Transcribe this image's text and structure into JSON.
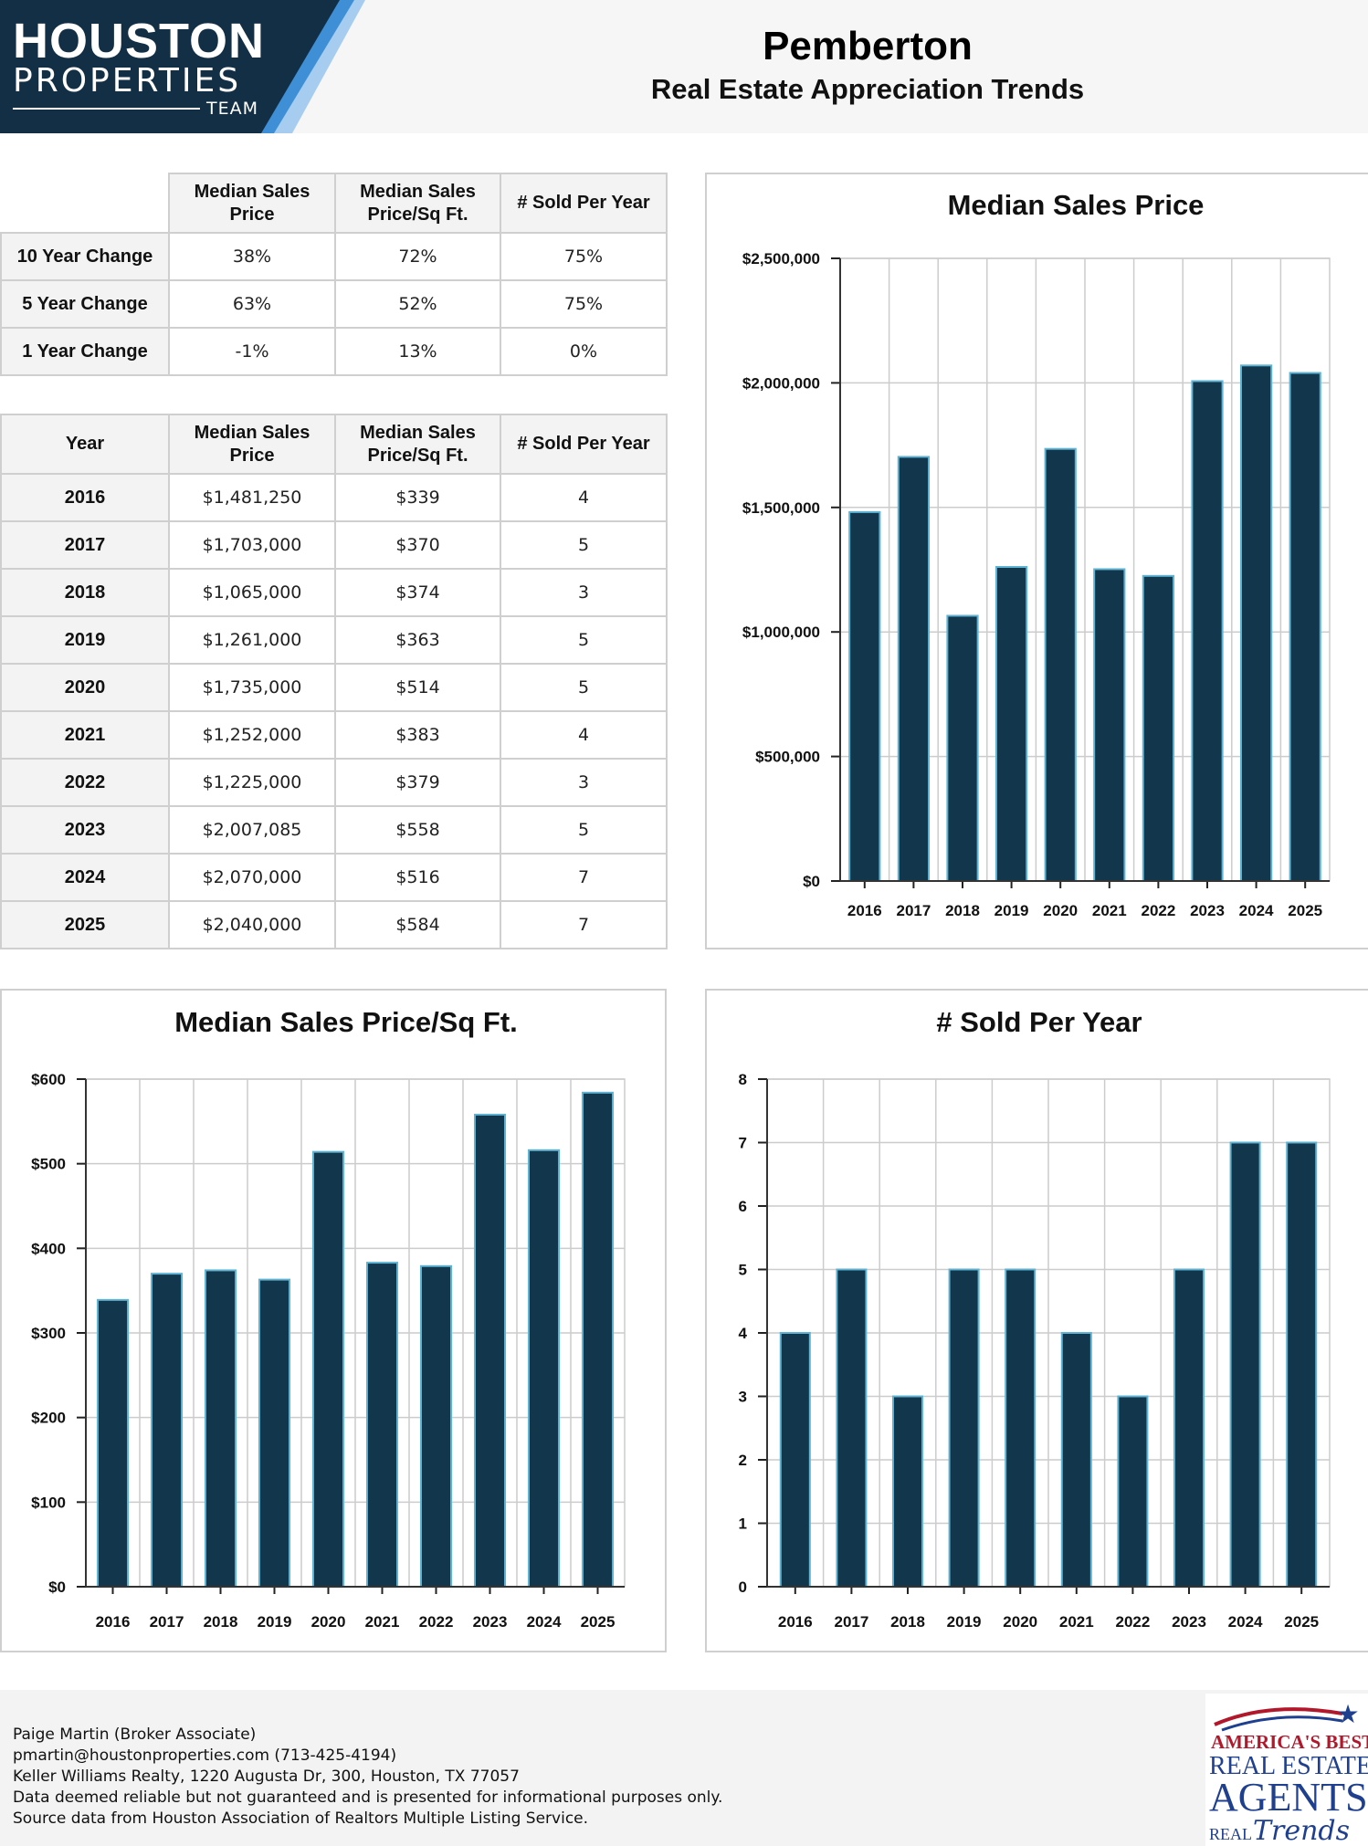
{
  "header": {
    "logo": {
      "line1": "HOUSTON",
      "line2": "PROPERTIES",
      "line3": "TEAM"
    },
    "title": "Pemberton",
    "subtitle": "Real Estate Appreciation Trends"
  },
  "colors": {
    "bar": "#12364c",
    "bar_edge": "#5fb3d3",
    "logo_dark": "#132f45",
    "logo_blue": "#3f8fd6",
    "logo_light": "#a6cdf0",
    "grid": "#cccccc"
  },
  "change_table": {
    "headers": [
      "Median Sales Price",
      "Median Sales Price/Sq Ft.",
      "# Sold Per Year"
    ],
    "rows": [
      {
        "label": "10 Year Change",
        "price": "38%",
        "sqft": "72%",
        "sold": "75%"
      },
      {
        "label": "5 Year Change",
        "price": "63%",
        "sqft": "52%",
        "sold": "75%"
      },
      {
        "label": "1 Year Change",
        "price": "-1%",
        "sqft": "13%",
        "sold": "0%"
      }
    ]
  },
  "year_table": {
    "headers": [
      "Year",
      "Median Sales Price",
      "Median Sales Price/Sq Ft.",
      "# Sold Per Year"
    ],
    "rows": [
      {
        "year": "2016",
        "price": "$1,481,250",
        "sqft": "$339",
        "sold": "4"
      },
      {
        "year": "2017",
        "price": "$1,703,000",
        "sqft": "$370",
        "sold": "5"
      },
      {
        "year": "2018",
        "price": "$1,065,000",
        "sqft": "$374",
        "sold": "3"
      },
      {
        "year": "2019",
        "price": "$1,261,000",
        "sqft": "$363",
        "sold": "5"
      },
      {
        "year": "2020",
        "price": "$1,735,000",
        "sqft": "$514",
        "sold": "5"
      },
      {
        "year": "2021",
        "price": "$1,252,000",
        "sqft": "$383",
        "sold": "4"
      },
      {
        "year": "2022",
        "price": "$1,225,000",
        "sqft": "$379",
        "sold": "3"
      },
      {
        "year": "2023",
        "price": "$2,007,085",
        "sqft": "$558",
        "sold": "5"
      },
      {
        "year": "2024",
        "price": "$2,070,000",
        "sqft": "$516",
        "sold": "7"
      },
      {
        "year": "2025",
        "price": "$2,040,000",
        "sqft": "$584",
        "sold": "7"
      }
    ]
  },
  "chart_data": [
    {
      "id": "price",
      "type": "bar",
      "title": "Median Sales Price",
      "categories": [
        "2016",
        "2017",
        "2018",
        "2019",
        "2020",
        "2021",
        "2022",
        "2023",
        "2024",
        "2025"
      ],
      "values": [
        1481250,
        1703000,
        1065000,
        1261000,
        1735000,
        1252000,
        1225000,
        2007085,
        2070000,
        2040000
      ],
      "ylim": [
        0,
        2500000
      ],
      "yticks": [
        0,
        500000,
        1000000,
        1500000,
        2000000,
        2500000
      ],
      "ytick_labels": [
        "$0",
        "$500,000",
        "$1,000,000",
        "$1,500,000",
        "$2,000,000",
        "$2,500,000"
      ],
      "xlabel": "",
      "ylabel": "",
      "grid": true
    },
    {
      "id": "sqft",
      "type": "bar",
      "title": "Median Sales Price/Sq Ft.",
      "categories": [
        "2016",
        "2017",
        "2018",
        "2019",
        "2020",
        "2021",
        "2022",
        "2023",
        "2024",
        "2025"
      ],
      "values": [
        339,
        370,
        374,
        363,
        514,
        383,
        379,
        558,
        516,
        584
      ],
      "ylim": [
        0,
        600
      ],
      "yticks": [
        0,
        100,
        200,
        300,
        400,
        500,
        600
      ],
      "ytick_labels": [
        "$0",
        "$100",
        "$200",
        "$300",
        "$400",
        "$500",
        "$600"
      ],
      "xlabel": "",
      "ylabel": "",
      "grid": true
    },
    {
      "id": "sold",
      "type": "bar",
      "title": "# Sold Per Year",
      "categories": [
        "2016",
        "2017",
        "2018",
        "2019",
        "2020",
        "2021",
        "2022",
        "2023",
        "2024",
        "2025"
      ],
      "values": [
        4,
        5,
        3,
        5,
        5,
        4,
        3,
        5,
        7,
        7
      ],
      "ylim": [
        0,
        8
      ],
      "yticks": [
        0,
        1,
        2,
        3,
        4,
        5,
        6,
        7,
        8
      ],
      "ytick_labels": [
        "0",
        "1",
        "2",
        "3",
        "4",
        "5",
        "6",
        "7",
        "8"
      ],
      "xlabel": "",
      "ylabel": "",
      "grid": true
    }
  ],
  "footer": {
    "lines": [
      "Paige Martin (Broker Associate)",
      "pmartin@houstonproperties.com (713-425-4194)",
      "Keller Williams Realty, 1220 Augusta Dr, 300, Houston, TX 77057",
      "Data deemed reliable but not guaranteed and is presented for informational purposes only.",
      "Source data from Houston Association of Realtors Multiple Listing Service."
    ],
    "badge": {
      "line1": "AMERICA'S BEST",
      "line2": "REAL ESTATE",
      "line3": "AGENTS",
      "line4": "REAL",
      "line5": "Trends"
    }
  }
}
